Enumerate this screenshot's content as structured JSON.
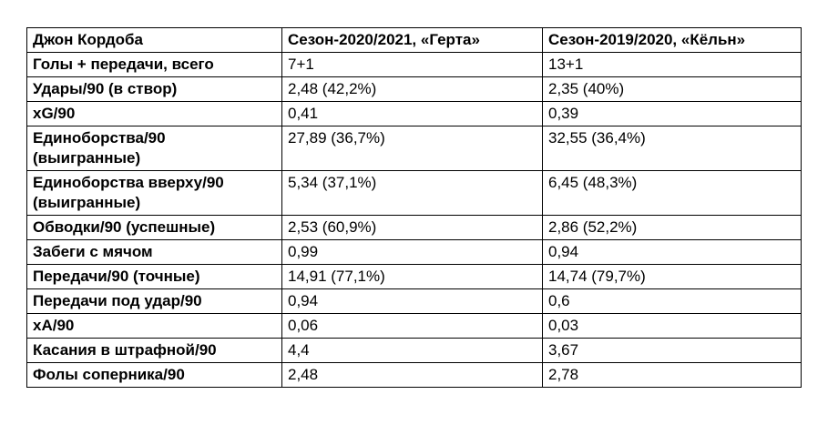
{
  "table": {
    "headers": [
      "Джон Кордоба",
      "Сезон-2020/2021, «Герта»",
      "Сезон-2019/2020, «Кёльн»"
    ],
    "rows": [
      [
        "Голы + передачи, всего",
        "7+1",
        "13+1"
      ],
      [
        "Удары/90 (в створ)",
        "2,48 (42,2%)",
        "2,35 (40%)"
      ],
      [
        "xG/90",
        "0,41",
        "0,39"
      ],
      [
        "Единоборства/90 (выигранные)",
        "27,89 (36,7%)",
        "32,55 (36,4%)"
      ],
      [
        "Единоборства вверху/90 (выигранные)",
        "5,34 (37,1%)",
        "6,45 (48,3%)"
      ],
      [
        "Обводки/90 (успешные)",
        "2,53 (60,9%)",
        "2,86 (52,2%)"
      ],
      [
        "Забеги с мячом",
        "0,99",
        "0,94"
      ],
      [
        "Передачи/90 (точные)",
        "14,91 (77,1%)",
        "14,74 (79,7%)"
      ],
      [
        "Передачи под удар/90",
        "0,94",
        "0,6"
      ],
      [
        "xA/90",
        "0,06",
        "0,03"
      ],
      [
        "Касания в штрафной/90",
        "4,4",
        "3,67"
      ],
      [
        "Фолы соперника/90",
        "2,48",
        "2,78"
      ]
    ]
  }
}
